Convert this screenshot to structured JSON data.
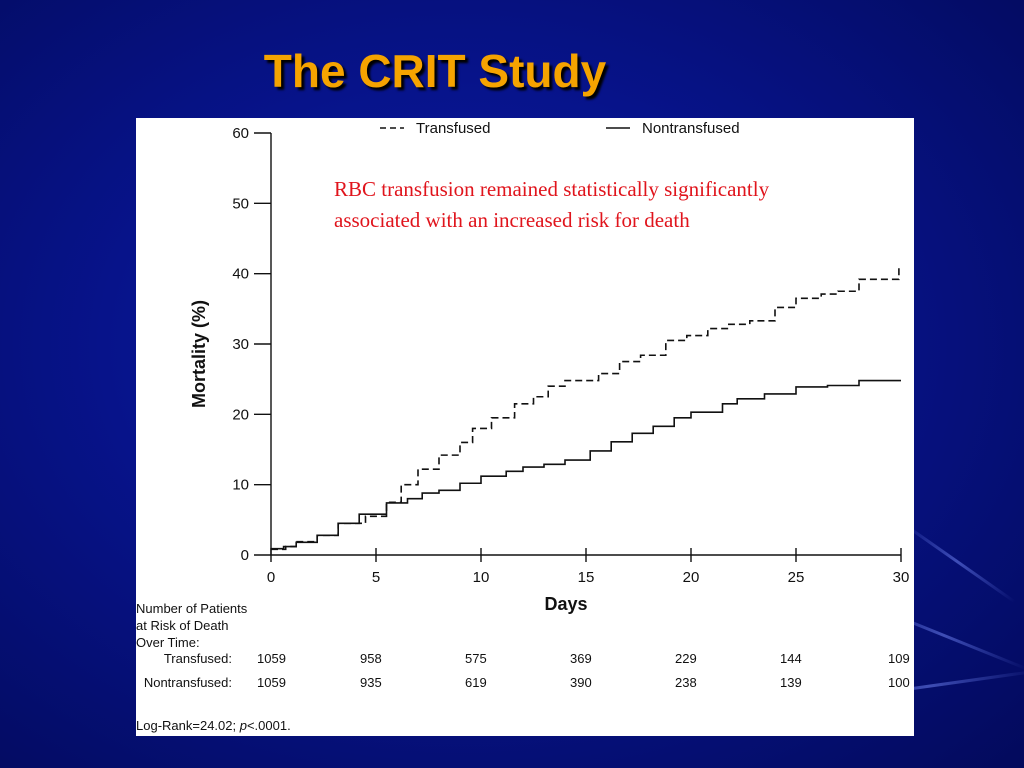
{
  "slide": {
    "title": "The CRIT Study",
    "annotation_lines": [
      "RBC transfusion remained statistically significantly",
      "associated with an increased risk for death"
    ],
    "annotation_color": "#e0141c",
    "title_color": "#f5a300",
    "background_color": "#07138a"
  },
  "chart_data": {
    "type": "line",
    "title": "",
    "xlabel": "Days",
    "ylabel": "Mortality (%)",
    "xlim": [
      0,
      30
    ],
    "ylim": [
      0,
      60
    ],
    "x_ticks": [
      0,
      5,
      10,
      15,
      20,
      25,
      30
    ],
    "y_ticks": [
      0,
      10,
      20,
      30,
      40,
      50,
      60
    ],
    "grid": false,
    "legend_position": "top",
    "step": true,
    "series": [
      {
        "name": "Transfused",
        "style": "dashed",
        "points": [
          [
            0,
            0.8
          ],
          [
            0.7,
            1.2
          ],
          [
            1.2,
            1.9
          ],
          [
            2.2,
            2.8
          ],
          [
            3.2,
            4.5
          ],
          [
            4.5,
            5.5
          ],
          [
            5.5,
            7.5
          ],
          [
            6.2,
            10
          ],
          [
            7,
            12.2
          ],
          [
            8,
            14.2
          ],
          [
            9,
            16
          ],
          [
            9.6,
            18
          ],
          [
            10.5,
            19.5
          ],
          [
            11.6,
            21.5
          ],
          [
            12.5,
            22.5
          ],
          [
            13.2,
            24
          ],
          [
            14,
            24.8
          ],
          [
            15.6,
            25.8
          ],
          [
            16.6,
            27.5
          ],
          [
            17.6,
            28.4
          ],
          [
            18.8,
            30.5
          ],
          [
            19.8,
            31.2
          ],
          [
            20.8,
            32.2
          ],
          [
            21.8,
            32.8
          ],
          [
            22.8,
            33.3
          ],
          [
            24,
            35.2
          ],
          [
            25,
            36.5
          ],
          [
            26.2,
            37.1
          ],
          [
            27,
            37.5
          ],
          [
            28,
            39.2
          ],
          [
            29.9,
            41
          ]
        ]
      },
      {
        "name": "Nontransfused",
        "style": "solid",
        "points": [
          [
            0,
            0.9
          ],
          [
            0.6,
            1.2
          ],
          [
            1.2,
            1.8
          ],
          [
            2.2,
            2.8
          ],
          [
            3.2,
            4.5
          ],
          [
            4.2,
            5.8
          ],
          [
            5.5,
            7.4
          ],
          [
            6.5,
            8.0
          ],
          [
            7.2,
            8.8
          ],
          [
            8,
            9.2
          ],
          [
            9,
            10.2
          ],
          [
            10,
            11.2
          ],
          [
            11.2,
            11.9
          ],
          [
            12,
            12.5
          ],
          [
            13,
            12.9
          ],
          [
            14,
            13.5
          ],
          [
            15.2,
            14.8
          ],
          [
            16.2,
            16.1
          ],
          [
            17.2,
            17.3
          ],
          [
            18.2,
            18.3
          ],
          [
            19.2,
            19.5
          ],
          [
            20,
            20.3
          ],
          [
            21.5,
            21.5
          ],
          [
            22.2,
            22.2
          ],
          [
            23.5,
            22.9
          ],
          [
            25,
            23.9
          ],
          [
            26.5,
            24.1
          ],
          [
            28,
            24.8
          ],
          [
            29.9,
            24.8
          ]
        ]
      }
    ],
    "number_at_risk": {
      "header_lines": [
        "Number of Patients",
        "at Risk of Death",
        "Over Time:"
      ],
      "days": [
        0,
        5,
        10,
        15,
        20,
        25,
        30
      ],
      "rows": [
        {
          "label": "Transfused:",
          "values": [
            "1059",
            "958",
            "575",
            "369",
            "229",
            "144",
            "109"
          ]
        },
        {
          "label": "Nontransfused:",
          "values": [
            "1059",
            "935",
            "619",
            "390",
            "238",
            "139",
            "100"
          ]
        }
      ]
    },
    "footnote_prefix": "Log-Rank=24.02; ",
    "footnote_italic": "p",
    "footnote_suffix": "<.0001."
  }
}
